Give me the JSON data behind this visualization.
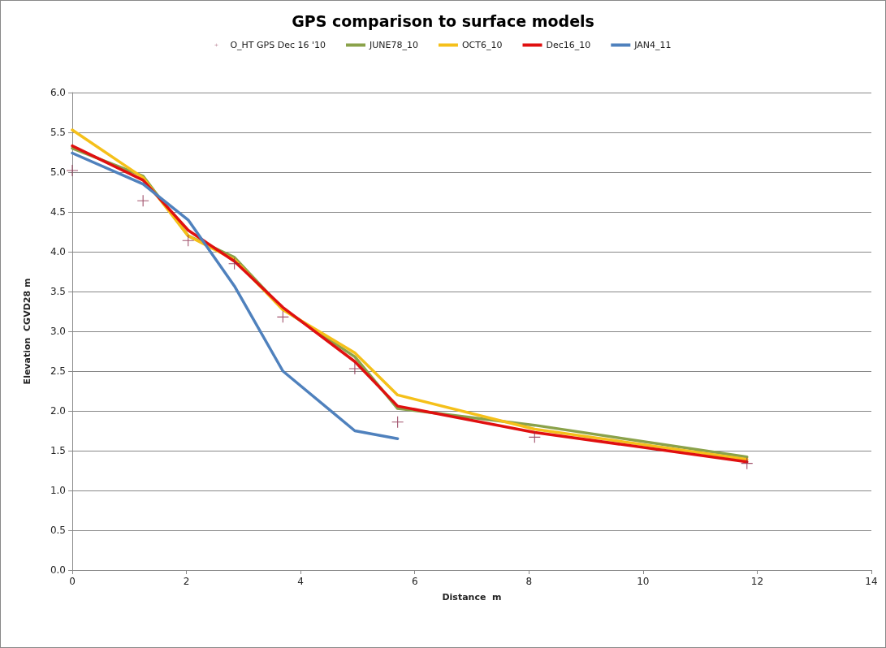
{
  "chart_data": {
    "type": "line",
    "title": "GPS comparison to surface models",
    "xlabel": "Distance  m",
    "ylabel": "Elevation  CGVD28 m",
    "xlim": [
      0,
      14
    ],
    "xticks": [
      0,
      2,
      4,
      6,
      8,
      10,
      12,
      14
    ],
    "ylim": [
      0,
      6
    ],
    "yticks": [
      {
        "value": 0,
        "label": "0.0"
      },
      {
        "value": 0.5,
        "label": "0.5"
      },
      {
        "value": 1,
        "label": "1.0"
      },
      {
        "value": 1.5,
        "label": "1.5"
      },
      {
        "value": 2,
        "label": "2.0"
      },
      {
        "value": 2.5,
        "label": "2.5"
      },
      {
        "value": 3,
        "label": "3.0"
      },
      {
        "value": 3.5,
        "label": "3.5"
      },
      {
        "value": 4,
        "label": "4.0"
      },
      {
        "value": 4.5,
        "label": "4.5"
      },
      {
        "value": 5,
        "label": "5.0"
      },
      {
        "value": 5.5,
        "label": "5.5"
      },
      {
        "value": 6,
        "label": "6.0"
      }
    ],
    "grid": "y",
    "legend": "top",
    "line_style": "solid",
    "series": [
      {
        "name": "O_HT GPS Dec 16 '10",
        "type": "scatter",
        "marker": "cross",
        "color": "#8b2a4a",
        "x": [
          0,
          1.24,
          2.03,
          2.84,
          3.69,
          4.95,
          5.7,
          8.1,
          11.82
        ],
        "values": [
          5.02,
          4.64,
          4.14,
          3.85,
          3.18,
          2.53,
          1.86,
          1.67,
          1.34
        ]
      },
      {
        "name": "JUNE78_10",
        "color": "#8aa24a",
        "x": [
          0,
          1.24,
          2.03,
          2.84,
          3.69,
          4.95,
          5.7,
          8.1,
          11.82
        ],
        "values": [
          5.3,
          4.95,
          4.2,
          3.93,
          3.28,
          2.68,
          2.03,
          1.82,
          1.42
        ]
      },
      {
        "name": "OCT6_10",
        "color": "#f5c01a",
        "x": [
          0,
          1.24,
          2.03,
          2.84,
          3.69,
          4.95,
          5.7,
          8.1,
          11.82
        ],
        "values": [
          5.53,
          4.93,
          4.2,
          3.9,
          3.27,
          2.73,
          2.2,
          1.77,
          1.39
        ]
      },
      {
        "name": "Dec16_10",
        "color": "#e01010",
        "x": [
          0,
          1.24,
          2.03,
          2.84,
          3.69,
          4.95,
          5.7,
          8.1,
          11.82
        ],
        "values": [
          5.33,
          4.9,
          4.27,
          3.88,
          3.3,
          2.62,
          2.06,
          1.73,
          1.36
        ]
      },
      {
        "name": "JAN4_11",
        "color": "#4f81bd",
        "x": [
          0,
          1.24,
          2.03,
          2.84,
          3.69,
          4.95,
          5.7
        ],
        "values": [
          5.24,
          4.85,
          4.4,
          3.57,
          2.5,
          1.75,
          1.65
        ]
      }
    ]
  }
}
